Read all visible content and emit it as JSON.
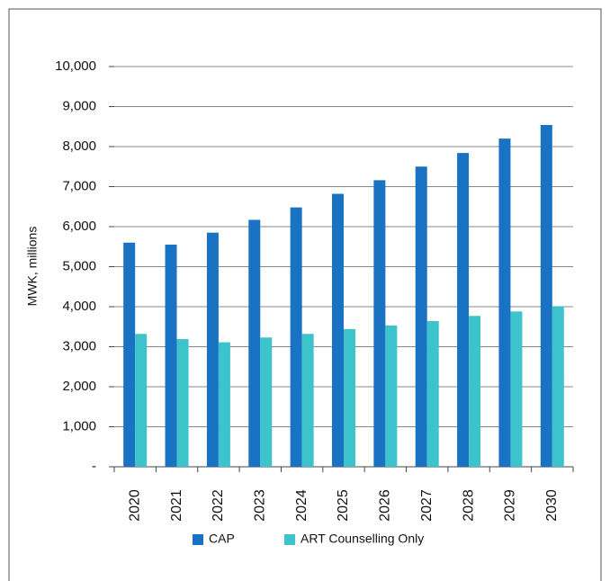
{
  "chart_data": {
    "type": "bar",
    "y_label": "MWK, millions",
    "categories": [
      "2020",
      "2021",
      "2022",
      "2023",
      "2024",
      "2025",
      "2026",
      "2027",
      "2028",
      "2029",
      "2030"
    ],
    "series": [
      {
        "name": "CAP",
        "color": "#1a72c2",
        "values": [
          5600,
          5550,
          5850,
          6170,
          6480,
          6820,
          7160,
          7500,
          7840,
          8200,
          8540
        ]
      },
      {
        "name": "ART Counselling Only",
        "color": "#3cc3cc",
        "values": [
          3320,
          3190,
          3110,
          3230,
          3320,
          3440,
          3530,
          3640,
          3770,
          3880,
          4010
        ]
      }
    ],
    "ylim": [
      0,
      10000
    ],
    "yticks": [
      {
        "value": 0,
        "label": "-"
      },
      {
        "value": 1000,
        "label": "1,000"
      },
      {
        "value": 2000,
        "label": "2,000"
      },
      {
        "value": 3000,
        "label": "3,000"
      },
      {
        "value": 4000,
        "label": "4,000"
      },
      {
        "value": 5000,
        "label": "5,000"
      },
      {
        "value": 6000,
        "label": "6,000"
      },
      {
        "value": 7000,
        "label": "7,000"
      },
      {
        "value": 8000,
        "label": "8,000"
      },
      {
        "value": 9000,
        "label": "9,000"
      },
      {
        "value": 10000,
        "label": "10,000"
      }
    ],
    "grid": true
  }
}
